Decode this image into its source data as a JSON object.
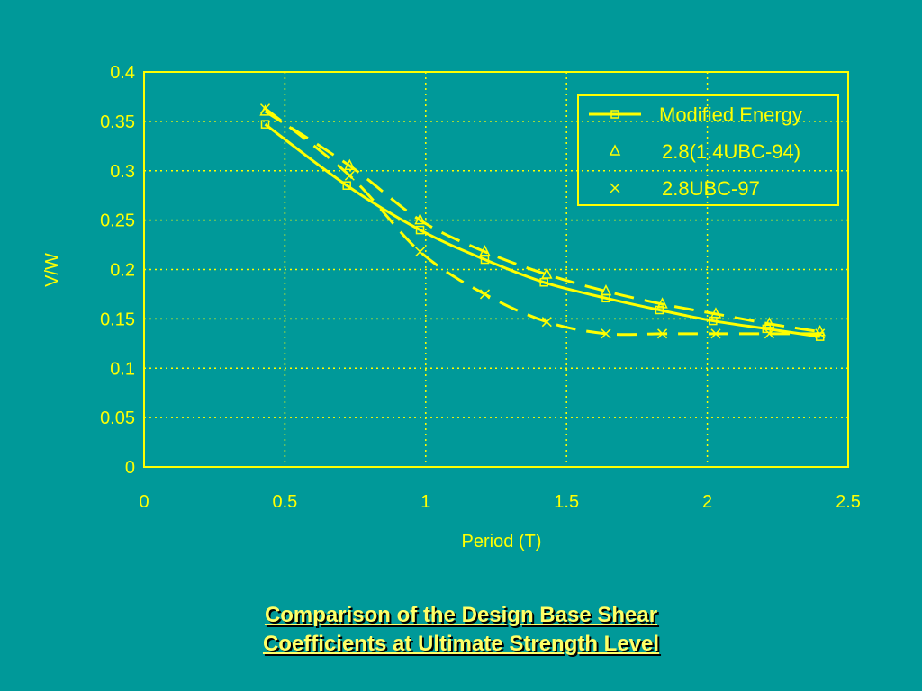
{
  "chart_data": {
    "type": "line",
    "title": "",
    "xlabel": "Period (T)",
    "ylabel": "V/W",
    "xlim": [
      0,
      2.5
    ],
    "ylim": [
      0,
      0.4
    ],
    "xticks": [
      "0",
      "0.5",
      "1",
      "1.5",
      "2",
      "2.5"
    ],
    "yticks": [
      "0",
      "0.05",
      "0.1",
      "0.15",
      "0.2",
      "0.25",
      "0.3",
      "0.35",
      "0.4"
    ],
    "grid": true,
    "legend_position": "top-right",
    "series": [
      {
        "name": "Modified Energy",
        "marker": "square",
        "line": "solid",
        "x": [
          0.43,
          0.72,
          0.98,
          1.21,
          1.42,
          1.64,
          1.83,
          2.02,
          2.21,
          2.4
        ],
        "y": [
          0.347,
          0.285,
          0.24,
          0.21,
          0.187,
          0.171,
          0.159,
          0.148,
          0.14,
          0.132
        ]
      },
      {
        "name": "2.8(1.4UBC-94)",
        "marker": "triangle",
        "line": "dashed",
        "x": [
          0.43,
          0.73,
          0.98,
          1.21,
          1.43,
          1.64,
          1.84,
          2.03,
          2.22,
          2.4
        ],
        "y": [
          0.36,
          0.305,
          0.25,
          0.218,
          0.195,
          0.178,
          0.165,
          0.155,
          0.145,
          0.137
        ]
      },
      {
        "name": "2.8UBC-97",
        "marker": "x",
        "line": "dashed",
        "x": [
          0.43,
          0.73,
          0.98,
          1.21,
          1.43,
          1.64,
          1.84,
          2.03,
          2.22,
          2.4
        ],
        "y": [
          0.363,
          0.295,
          0.218,
          0.175,
          0.147,
          0.135,
          0.135,
          0.135,
          0.135,
          0.135
        ]
      }
    ]
  },
  "caption": {
    "line1": "Comparison of the Design Base Shear",
    "line2": "Coefficients at Ultimate Strength Level"
  },
  "colors": {
    "background": "#009999",
    "foreground": "#ffff00",
    "caption": "#ffff66"
  }
}
